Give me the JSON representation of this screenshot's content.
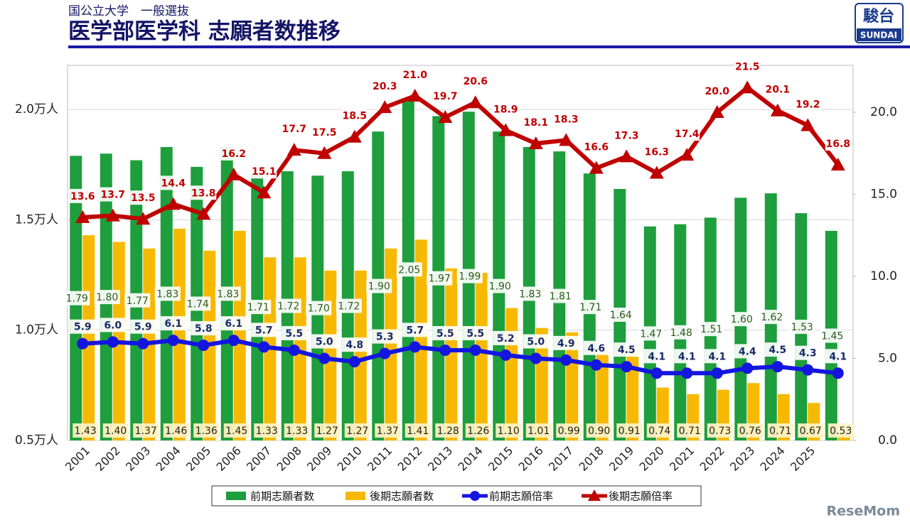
{
  "chart_data": {
    "type": "bar",
    "subtitle": "国公立大学　一般選抜",
    "title": "医学部医学科 志願者数推移",
    "logo": [
      "駿台",
      "SUNDAI"
    ],
    "watermark": "ReseMom",
    "categories": [
      "2001",
      "2002",
      "2003",
      "2004",
      "2005",
      "2006",
      "2007",
      "2008",
      "2009",
      "2010",
      "2011",
      "2012",
      "2013",
      "2014",
      "2015",
      "2016",
      "2017",
      "2018",
      "2019",
      "2020",
      "2021",
      "2022",
      "2023",
      "2024",
      "2025",
      null
    ],
    "ylim": [
      0.5,
      2.2
    ],
    "yticks": [
      {
        "value": 0.5,
        "label": "0.5万人"
      },
      {
        "value": 1.0,
        "label": "1.0万人"
      },
      {
        "value": 1.5,
        "label": "1.5万人"
      },
      {
        "value": 2.0,
        "label": "2.0万人"
      }
    ],
    "y2lim": [
      0,
      22.86
    ],
    "y2ticks": [
      {
        "value": 0,
        "label": "0.0"
      },
      {
        "value": 5,
        "label": "5.0"
      },
      {
        "value": 10,
        "label": "10.0"
      },
      {
        "value": 15,
        "label": "15.0"
      },
      {
        "value": 20,
        "label": "20.0"
      }
    ],
    "grid": true,
    "legend": "bottom",
    "series": [
      {
        "name": "前期志願者数",
        "type": "bar",
        "color": "#1e9e3c",
        "values": [
          1.79,
          1.8,
          1.77,
          1.83,
          1.74,
          1.83,
          1.71,
          1.72,
          1.7,
          1.72,
          1.9,
          2.05,
          1.97,
          1.99,
          1.9,
          1.83,
          1.81,
          1.71,
          1.64,
          1.47,
          1.48,
          1.51,
          1.6,
          1.62,
          1.53,
          1.45
        ],
        "value_labels": [
          "1.79",
          "1.80",
          "1.77",
          "1.83",
          "1.74",
          "1.83",
          "1.71",
          "1.72",
          "1.70",
          "1.72",
          "1.90",
          "2.05",
          "1.97",
          "1.99",
          "1.90",
          "1.83",
          "1.81",
          "1.71",
          "1.64",
          "1.47",
          "1.48",
          "1.51",
          "1.60",
          "1.62",
          "1.53",
          "1.45"
        ]
      },
      {
        "name": "後期志願者数",
        "type": "bar",
        "color": "#f7b900",
        "values": [
          1.43,
          1.4,
          1.37,
          1.46,
          1.36,
          1.45,
          1.33,
          1.33,
          1.27,
          1.27,
          1.37,
          1.41,
          1.28,
          1.26,
          1.1,
          1.01,
          0.99,
          0.9,
          0.91,
          0.74,
          0.71,
          0.73,
          0.76,
          0.71,
          0.67,
          0.53
        ],
        "value_labels": [
          "1.43",
          "1.40",
          "1.37",
          "1.46",
          "1.36",
          "1.45",
          "1.33",
          "1.33",
          "1.27",
          "1.27",
          "1.37",
          "1.41",
          "1.28",
          "1.26",
          "1.10",
          "1.01",
          "0.99",
          "0.90",
          "0.91",
          "0.74",
          "0.71",
          "0.73",
          "0.76",
          "0.71",
          "0.67",
          "0.53"
        ]
      },
      {
        "name": "前期志願倍率",
        "type": "line",
        "axis": "y2",
        "color": "#1515e0",
        "values": [
          5.9,
          6.0,
          5.9,
          6.1,
          5.8,
          6.1,
          5.7,
          5.5,
          5.0,
          4.8,
          5.3,
          5.7,
          5.5,
          5.5,
          5.2,
          5.0,
          4.9,
          4.6,
          4.5,
          4.1,
          4.1,
          4.1,
          4.4,
          4.5,
          4.3,
          4.1
        ],
        "value_labels": [
          "5.9",
          "6.0",
          "5.9",
          "6.1",
          "5.8",
          "6.1",
          "5.7",
          "5.5",
          "5.0",
          "4.8",
          "5.3",
          "5.7",
          "5.5",
          "5.5",
          "5.2",
          "5.0",
          "4.9",
          "4.6",
          "4.5",
          "4.1",
          "4.1",
          "4.1",
          "4.4",
          "4.5",
          "4.3",
          "4.1"
        ]
      },
      {
        "name": "後期志願倍率",
        "type": "line",
        "axis": "y2",
        "color": "#c00000",
        "values": [
          13.6,
          13.7,
          13.5,
          14.4,
          13.8,
          16.2,
          15.1,
          17.7,
          17.5,
          18.5,
          20.3,
          21.0,
          19.7,
          20.6,
          18.9,
          18.1,
          18.3,
          16.6,
          17.3,
          16.3,
          17.4,
          20.0,
          21.5,
          20.1,
          19.2,
          16.8
        ],
        "value_labels": [
          "13.6",
          "13.7",
          "13.5",
          "14.4",
          "13.8",
          "16.2",
          "15.1",
          "17.7",
          "17.5",
          "18.5",
          "20.3",
          "21.0",
          "19.7",
          "20.6",
          "18.9",
          "18.1",
          "18.3",
          "16.6",
          "17.3",
          "16.3",
          "17.4",
          "20.0",
          "21.5",
          "20.1",
          "19.2",
          "16.8"
        ]
      }
    ]
  }
}
